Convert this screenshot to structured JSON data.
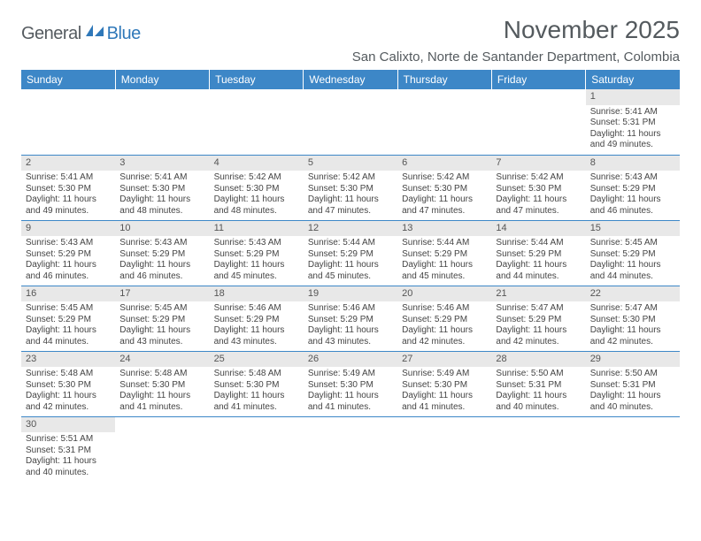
{
  "brand": {
    "name1": "General",
    "name2": "Blue"
  },
  "title": "November 2025",
  "location": "San Calixto, Norte de Santander Department, Colombia",
  "colors": {
    "header_bg": "#3d87c7",
    "header_text": "#ffffff",
    "daynum_bg": "#e8e8e8",
    "border": "#3d87c7",
    "text": "#444444"
  },
  "weekdays": [
    "Sunday",
    "Monday",
    "Tuesday",
    "Wednesday",
    "Thursday",
    "Friday",
    "Saturday"
  ],
  "weeks": [
    [
      {
        "n": "",
        "sunrise": "",
        "sunset": "",
        "daylight": ""
      },
      {
        "n": "",
        "sunrise": "",
        "sunset": "",
        "daylight": ""
      },
      {
        "n": "",
        "sunrise": "",
        "sunset": "",
        "daylight": ""
      },
      {
        "n": "",
        "sunrise": "",
        "sunset": "",
        "daylight": ""
      },
      {
        "n": "",
        "sunrise": "",
        "sunset": "",
        "daylight": ""
      },
      {
        "n": "",
        "sunrise": "",
        "sunset": "",
        "daylight": ""
      },
      {
        "n": "1",
        "sunrise": "Sunrise: 5:41 AM",
        "sunset": "Sunset: 5:31 PM",
        "daylight": "Daylight: 11 hours and 49 minutes."
      }
    ],
    [
      {
        "n": "2",
        "sunrise": "Sunrise: 5:41 AM",
        "sunset": "Sunset: 5:30 PM",
        "daylight": "Daylight: 11 hours and 49 minutes."
      },
      {
        "n": "3",
        "sunrise": "Sunrise: 5:41 AM",
        "sunset": "Sunset: 5:30 PM",
        "daylight": "Daylight: 11 hours and 48 minutes."
      },
      {
        "n": "4",
        "sunrise": "Sunrise: 5:42 AM",
        "sunset": "Sunset: 5:30 PM",
        "daylight": "Daylight: 11 hours and 48 minutes."
      },
      {
        "n": "5",
        "sunrise": "Sunrise: 5:42 AM",
        "sunset": "Sunset: 5:30 PM",
        "daylight": "Daylight: 11 hours and 47 minutes."
      },
      {
        "n": "6",
        "sunrise": "Sunrise: 5:42 AM",
        "sunset": "Sunset: 5:30 PM",
        "daylight": "Daylight: 11 hours and 47 minutes."
      },
      {
        "n": "7",
        "sunrise": "Sunrise: 5:42 AM",
        "sunset": "Sunset: 5:30 PM",
        "daylight": "Daylight: 11 hours and 47 minutes."
      },
      {
        "n": "8",
        "sunrise": "Sunrise: 5:43 AM",
        "sunset": "Sunset: 5:29 PM",
        "daylight": "Daylight: 11 hours and 46 minutes."
      }
    ],
    [
      {
        "n": "9",
        "sunrise": "Sunrise: 5:43 AM",
        "sunset": "Sunset: 5:29 PM",
        "daylight": "Daylight: 11 hours and 46 minutes."
      },
      {
        "n": "10",
        "sunrise": "Sunrise: 5:43 AM",
        "sunset": "Sunset: 5:29 PM",
        "daylight": "Daylight: 11 hours and 46 minutes."
      },
      {
        "n": "11",
        "sunrise": "Sunrise: 5:43 AM",
        "sunset": "Sunset: 5:29 PM",
        "daylight": "Daylight: 11 hours and 45 minutes."
      },
      {
        "n": "12",
        "sunrise": "Sunrise: 5:44 AM",
        "sunset": "Sunset: 5:29 PM",
        "daylight": "Daylight: 11 hours and 45 minutes."
      },
      {
        "n": "13",
        "sunrise": "Sunrise: 5:44 AM",
        "sunset": "Sunset: 5:29 PM",
        "daylight": "Daylight: 11 hours and 45 minutes."
      },
      {
        "n": "14",
        "sunrise": "Sunrise: 5:44 AM",
        "sunset": "Sunset: 5:29 PM",
        "daylight": "Daylight: 11 hours and 44 minutes."
      },
      {
        "n": "15",
        "sunrise": "Sunrise: 5:45 AM",
        "sunset": "Sunset: 5:29 PM",
        "daylight": "Daylight: 11 hours and 44 minutes."
      }
    ],
    [
      {
        "n": "16",
        "sunrise": "Sunrise: 5:45 AM",
        "sunset": "Sunset: 5:29 PM",
        "daylight": "Daylight: 11 hours and 44 minutes."
      },
      {
        "n": "17",
        "sunrise": "Sunrise: 5:45 AM",
        "sunset": "Sunset: 5:29 PM",
        "daylight": "Daylight: 11 hours and 43 minutes."
      },
      {
        "n": "18",
        "sunrise": "Sunrise: 5:46 AM",
        "sunset": "Sunset: 5:29 PM",
        "daylight": "Daylight: 11 hours and 43 minutes."
      },
      {
        "n": "19",
        "sunrise": "Sunrise: 5:46 AM",
        "sunset": "Sunset: 5:29 PM",
        "daylight": "Daylight: 11 hours and 43 minutes."
      },
      {
        "n": "20",
        "sunrise": "Sunrise: 5:46 AM",
        "sunset": "Sunset: 5:29 PM",
        "daylight": "Daylight: 11 hours and 42 minutes."
      },
      {
        "n": "21",
        "sunrise": "Sunrise: 5:47 AM",
        "sunset": "Sunset: 5:29 PM",
        "daylight": "Daylight: 11 hours and 42 minutes."
      },
      {
        "n": "22",
        "sunrise": "Sunrise: 5:47 AM",
        "sunset": "Sunset: 5:30 PM",
        "daylight": "Daylight: 11 hours and 42 minutes."
      }
    ],
    [
      {
        "n": "23",
        "sunrise": "Sunrise: 5:48 AM",
        "sunset": "Sunset: 5:30 PM",
        "daylight": "Daylight: 11 hours and 42 minutes."
      },
      {
        "n": "24",
        "sunrise": "Sunrise: 5:48 AM",
        "sunset": "Sunset: 5:30 PM",
        "daylight": "Daylight: 11 hours and 41 minutes."
      },
      {
        "n": "25",
        "sunrise": "Sunrise: 5:48 AM",
        "sunset": "Sunset: 5:30 PM",
        "daylight": "Daylight: 11 hours and 41 minutes."
      },
      {
        "n": "26",
        "sunrise": "Sunrise: 5:49 AM",
        "sunset": "Sunset: 5:30 PM",
        "daylight": "Daylight: 11 hours and 41 minutes."
      },
      {
        "n": "27",
        "sunrise": "Sunrise: 5:49 AM",
        "sunset": "Sunset: 5:30 PM",
        "daylight": "Daylight: 11 hours and 41 minutes."
      },
      {
        "n": "28",
        "sunrise": "Sunrise: 5:50 AM",
        "sunset": "Sunset: 5:31 PM",
        "daylight": "Daylight: 11 hours and 40 minutes."
      },
      {
        "n": "29",
        "sunrise": "Sunrise: 5:50 AM",
        "sunset": "Sunset: 5:31 PM",
        "daylight": "Daylight: 11 hours and 40 minutes."
      }
    ],
    [
      {
        "n": "30",
        "sunrise": "Sunrise: 5:51 AM",
        "sunset": "Sunset: 5:31 PM",
        "daylight": "Daylight: 11 hours and 40 minutes."
      },
      {
        "n": "",
        "sunrise": "",
        "sunset": "",
        "daylight": ""
      },
      {
        "n": "",
        "sunrise": "",
        "sunset": "",
        "daylight": ""
      },
      {
        "n": "",
        "sunrise": "",
        "sunset": "",
        "daylight": ""
      },
      {
        "n": "",
        "sunrise": "",
        "sunset": "",
        "daylight": ""
      },
      {
        "n": "",
        "sunrise": "",
        "sunset": "",
        "daylight": ""
      },
      {
        "n": "",
        "sunrise": "",
        "sunset": "",
        "daylight": ""
      }
    ]
  ]
}
